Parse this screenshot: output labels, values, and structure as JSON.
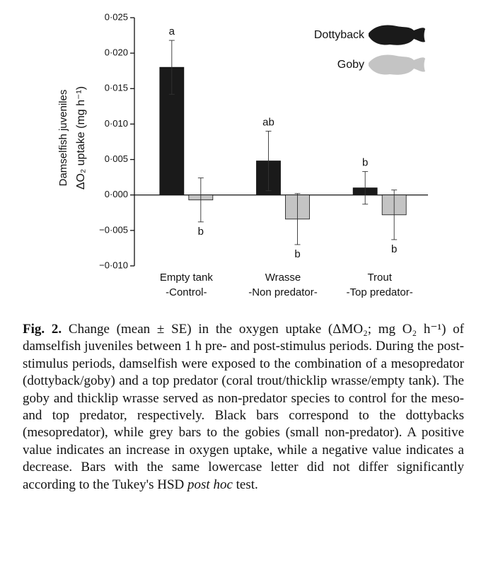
{
  "chart_data": {
    "type": "bar",
    "ylabel": [
      "Damselfish juveniles",
      "ΔO₂ uptake (mg h⁻¹)"
    ],
    "categories": [
      [
        "Empty tank",
        "-Control-"
      ],
      [
        "Wrasse",
        "-Non predator-"
      ],
      [
        "Trout",
        "-Top predator-"
      ]
    ],
    "series": [
      {
        "name": "Dottyback",
        "color": "#1a1a1a",
        "values": [
          0.018,
          0.0048,
          0.001
        ],
        "errors": [
          0.0038,
          0.0042,
          0.0023
        ],
        "letters": [
          "a",
          "ab",
          "b"
        ]
      },
      {
        "name": "Goby",
        "color": "#c4c4c4",
        "values": [
          -0.0007,
          -0.0034,
          -0.0028
        ],
        "errors": [
          0.0031,
          0.0036,
          0.0035
        ],
        "letters": [
          "b",
          "b",
          "b"
        ]
      }
    ],
    "ylim": [
      -0.01,
      0.025
    ],
    "yticks": [
      {
        "value": -0.01,
        "label": "−0·010"
      },
      {
        "value": -0.005,
        "label": "−0·005"
      },
      {
        "value": 0,
        "label": "0·000"
      },
      {
        "value": 0.005,
        "label": "0·005"
      },
      {
        "value": 0.01,
        "label": "0·010"
      },
      {
        "value": 0.015,
        "label": "0·015"
      },
      {
        "value": 0.02,
        "label": "0·020"
      },
      {
        "value": 0.025,
        "label": "0·025"
      }
    ],
    "error_bars": true
  },
  "caption": {
    "label": "Fig. 2.",
    "text": " Change (mean ± SE) in the oxygen uptake (ΔMO₂; mg O₂ h⁻¹) of damselfish juveniles between 1 h pre- and post-stimulus periods. During the post-stimulus periods, damselfish were exposed to the combination of a mesopredator (dottyback/goby) and a top predator (coral trout/thicklip wrasse/empty tank). The goby and thicklip wrasse served as non-predator species to control for the meso- and top predator, respectively. Black bars correspond to the dottybacks (mesopredator), while grey bars to the gobies (small non-predator). A positive value indicates an increase in oxygen uptake, while a negative value indicates a decrease. Bars with the same lowercase letter did not differ significantly according to the Tukey's HSD ",
    "italic": "post hoc",
    "end": " test."
  }
}
